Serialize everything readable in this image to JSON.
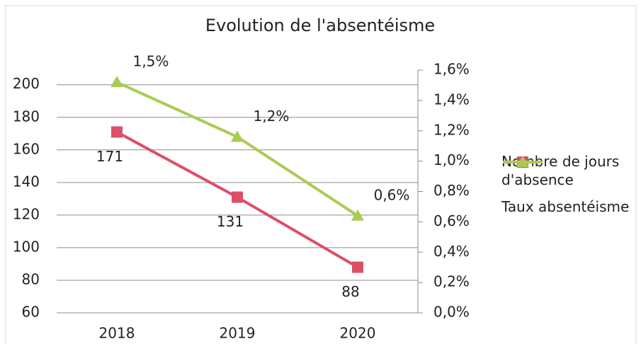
{
  "chart_data": {
    "type": "line",
    "title": "Evolution de l'absentéisme",
    "categories": [
      "2018",
      "2019",
      "2020"
    ],
    "series": [
      {
        "name": "Nombre de jours d'absence",
        "color": "#dc4f68",
        "marker": "square",
        "values": [
          171,
          131,
          88
        ]
      },
      {
        "name": "Taux absentéisme",
        "color": "#a8cc52",
        "marker": "triangle",
        "axis": "y2",
        "values": [
          1.52,
          1.16,
          0.64
        ],
        "value_labels": [
          "1,5%",
          "1,2%",
          "0,6%"
        ]
      }
    ],
    "ylim": [
      60,
      209
    ],
    "yticks": [
      60,
      80,
      100,
      120,
      140,
      160,
      180,
      200
    ],
    "y2lim": [
      0,
      1.6
    ],
    "y2ticks": [
      {
        "value": 0,
        "label": "0,0%"
      },
      {
        "value": 0.2,
        "label": "0,2%"
      },
      {
        "value": 0.4,
        "label": "0,4%"
      },
      {
        "value": 0.6,
        "label": "0,6%"
      },
      {
        "value": 0.8,
        "label": "0,8%"
      },
      {
        "value": 1.0,
        "label": "1,0%"
      },
      {
        "value": 1.2,
        "label": "1,2%"
      },
      {
        "value": 1.4,
        "label": "1,4%"
      },
      {
        "value": 1.6,
        "label": "1,6%"
      }
    ],
    "grid": true,
    "legend": "right"
  }
}
